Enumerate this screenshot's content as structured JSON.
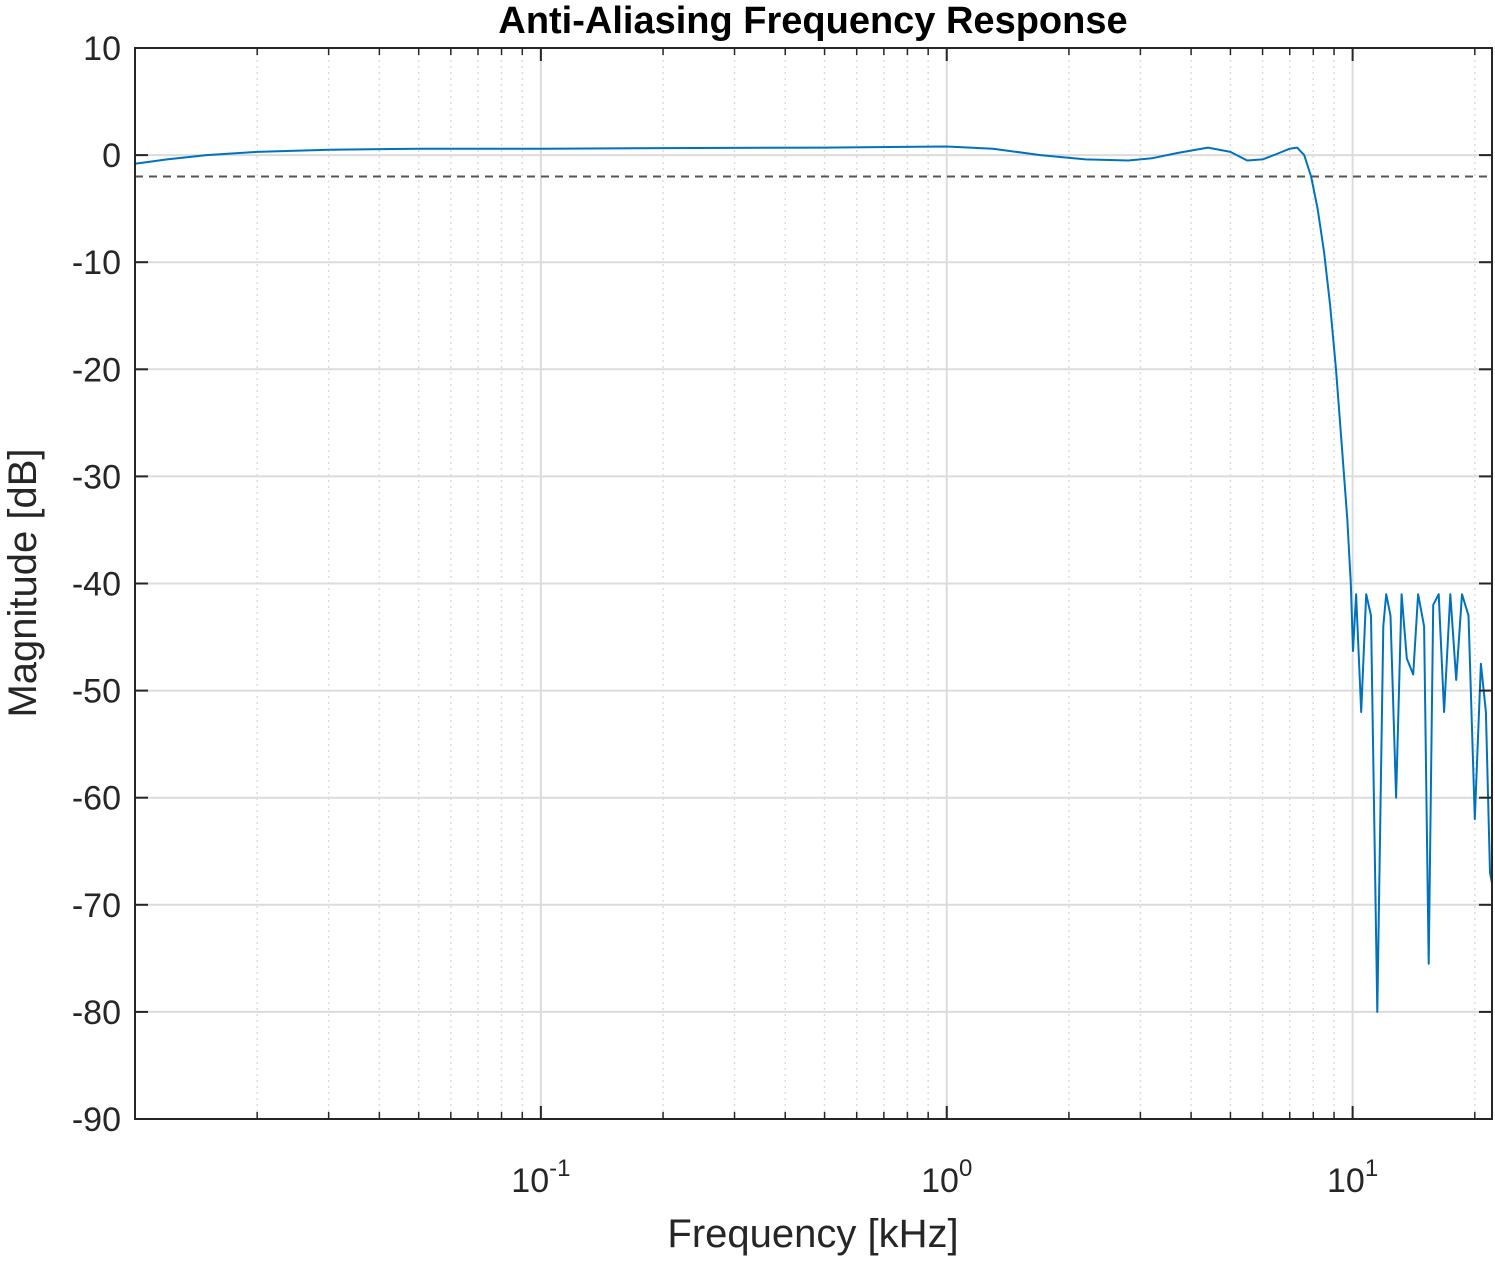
{
  "chart_data": {
    "type": "line",
    "title": "Anti-Aliasing Frequency Response",
    "xlabel": "Frequency [kHz]",
    "ylabel": "Magnitude [dB]",
    "xscale": "log",
    "xlim": [
      0.01,
      22.05
    ],
    "ylim": [
      -90,
      10
    ],
    "yticks": [
      10,
      0,
      -10,
      -20,
      -30,
      -40,
      -50,
      -60,
      -70,
      -80,
      -90
    ],
    "xticks": [
      {
        "value": 0.1,
        "base": "10",
        "exp": "-1"
      },
      {
        "value": 1,
        "base": "10",
        "exp": "0"
      },
      {
        "value": 10,
        "base": "10",
        "exp": "1"
      }
    ],
    "grid": true,
    "colors": {
      "series": "#0072BD",
      "reference": "#555555",
      "grid": "#dcdcdc",
      "axis": "#262626"
    },
    "reference_line": {
      "y": -2,
      "style": "dashed"
    },
    "series": [
      {
        "x": [
          0.01,
          0.012,
          0.015,
          0.02,
          0.03,
          0.05,
          0.1,
          0.2,
          0.5,
          1.0,
          1.3,
          1.7,
          2.2,
          2.8,
          3.2,
          3.7,
          4.4,
          5.0,
          5.5,
          6.0,
          6.5,
          7.0,
          7.3,
          7.6,
          7.9,
          8.2,
          8.5,
          8.8,
          9.1,
          9.4,
          9.7,
          9.9,
          10.02,
          10.2,
          10.5,
          10.8,
          11.1,
          11.5,
          11.9,
          12.1,
          12.4,
          12.8,
          13.2,
          13.6,
          14.1,
          14.5,
          15.0,
          15.4,
          15.8,
          16.3,
          16.8,
          17.4,
          18.0,
          18.6,
          19.3,
          20.0,
          20.7,
          21.3,
          21.8,
          22.05
        ],
        "y": [
          -0.8,
          -0.4,
          0.0,
          0.3,
          0.5,
          0.6,
          0.6,
          0.65,
          0.7,
          0.8,
          0.6,
          0.0,
          -0.4,
          -0.5,
          -0.3,
          0.2,
          0.7,
          0.3,
          -0.5,
          -0.4,
          0.1,
          0.6,
          0.7,
          0.0,
          -2.0,
          -5.0,
          -9.0,
          -14.0,
          -20.0,
          -27.0,
          -34.0,
          -40.0,
          -46.3,
          -41.0,
          -52.0,
          -41.0,
          -43.0,
          -80.0,
          -44.0,
          -41.0,
          -43.0,
          -60.0,
          -41.0,
          -47.0,
          -48.5,
          -41.0,
          -44.0,
          -75.5,
          -42.0,
          -41.0,
          -52.0,
          -41.0,
          -49.0,
          -41.0,
          -43.0,
          -62.0,
          -47.5,
          -52.0,
          -67.0,
          -68.0
        ]
      }
    ]
  }
}
